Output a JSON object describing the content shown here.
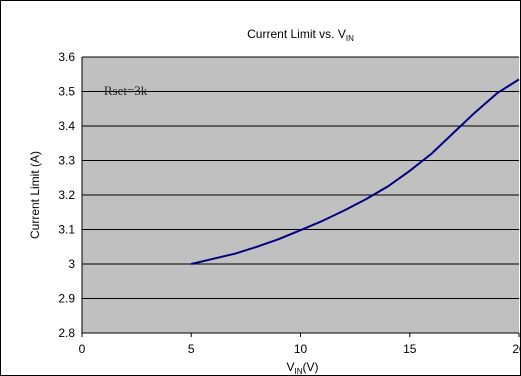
{
  "chart_data": {
    "type": "line",
    "title": {
      "main": "Current Limit vs. V",
      "sub": "IN"
    },
    "xlabel": {
      "main": "V",
      "sub": "IN",
      "suffix": "(V)"
    },
    "ylabel": "Current Limit (A)",
    "xlim": [
      0,
      20
    ],
    "ylim": [
      2.8,
      3.6
    ],
    "xticks": [
      "0",
      "5",
      "10",
      "15",
      "20"
    ],
    "yticks": [
      "2.8",
      "2.9",
      "3",
      "3.1",
      "3.2",
      "3.3",
      "3.4",
      "3.5",
      "3.6"
    ],
    "grid": true,
    "plot_background": "#c0c0c0",
    "series": [
      {
        "color": "#000080",
        "x": [
          5,
          6,
          7,
          8,
          9,
          10,
          11,
          12,
          13,
          14,
          15,
          16,
          17,
          18,
          19,
          20
        ],
        "y": [
          3.0,
          3.015,
          3.03,
          3.05,
          3.072,
          3.098,
          3.125,
          3.155,
          3.188,
          3.225,
          3.27,
          3.32,
          3.38,
          3.44,
          3.495,
          3.535
        ]
      }
    ],
    "annotations": [
      {
        "text": "Rset=3k",
        "x": 1,
        "y": 3.49
      }
    ]
  }
}
